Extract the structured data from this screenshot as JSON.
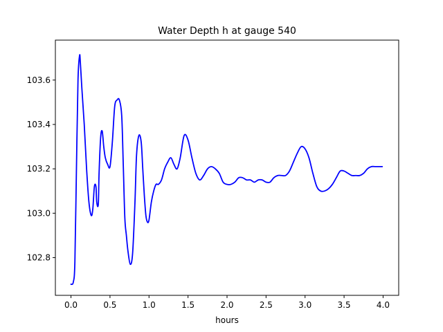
{
  "chart_data": {
    "type": "line",
    "title": "Water Depth h at gauge 540",
    "xlabel": "hours",
    "ylabel": "",
    "xlim": [
      -0.2,
      4.2
    ],
    "ylim": [
      102.63,
      103.78
    ],
    "xticks": [
      0.0,
      0.5,
      1.0,
      1.5,
      2.0,
      2.5,
      3.0,
      3.5,
      4.0
    ],
    "xtick_labels": [
      "0.0",
      "0.5",
      "1.0",
      "1.5",
      "2.0",
      "2.5",
      "3.0",
      "3.5",
      "4.0"
    ],
    "yticks": [
      102.8,
      103.0,
      103.2,
      103.4,
      103.6
    ],
    "ytick_labels": [
      "102.8",
      "103.0",
      "103.2",
      "103.4",
      "103.6"
    ],
    "grid": false,
    "series": [
      {
        "color": "#0000ff",
        "x": [
          0.0,
          0.03,
          0.05,
          0.07,
          0.09,
          0.11,
          0.12,
          0.14,
          0.17,
          0.2,
          0.23,
          0.26,
          0.28,
          0.3,
          0.32,
          0.33,
          0.35,
          0.36,
          0.38,
          0.4,
          0.42,
          0.44,
          0.47,
          0.5,
          0.53,
          0.56,
          0.59,
          0.62,
          0.65,
          0.67,
          0.69,
          0.71,
          0.73,
          0.76,
          0.79,
          0.82,
          0.84,
          0.87,
          0.9,
          0.92,
          0.94,
          0.96,
          0.98,
          1.0,
          1.03,
          1.06,
          1.09,
          1.12,
          1.16,
          1.2,
          1.24,
          1.28,
          1.32,
          1.36,
          1.4,
          1.45,
          1.5,
          1.55,
          1.6,
          1.65,
          1.7,
          1.75,
          1.8,
          1.85,
          1.9,
          1.95,
          2.0,
          2.05,
          2.1,
          2.15,
          2.2,
          2.25,
          2.3,
          2.35,
          2.4,
          2.45,
          2.5,
          2.55,
          2.6,
          2.65,
          2.7,
          2.75,
          2.8,
          2.85,
          2.9,
          2.95,
          3.0,
          3.05,
          3.1,
          3.15,
          3.2,
          3.25,
          3.3,
          3.35,
          3.4,
          3.45,
          3.5,
          3.55,
          3.6,
          3.65,
          3.7,
          3.75,
          3.8,
          3.85,
          3.9,
          3.95,
          3.99
        ],
        "y": [
          102.68,
          102.69,
          102.78,
          103.2,
          103.6,
          103.71,
          103.68,
          103.56,
          103.4,
          103.2,
          103.05,
          102.99,
          103.02,
          103.12,
          103.12,
          103.05,
          103.04,
          103.18,
          103.34,
          103.37,
          103.3,
          103.25,
          103.22,
          103.21,
          103.32,
          103.48,
          103.51,
          103.51,
          103.44,
          103.22,
          102.98,
          102.9,
          102.83,
          102.77,
          102.82,
          103.05,
          103.26,
          103.35,
          103.32,
          103.2,
          103.08,
          102.99,
          102.96,
          102.97,
          103.05,
          103.1,
          103.13,
          103.13,
          103.15,
          103.2,
          103.23,
          103.25,
          103.22,
          103.2,
          103.25,
          103.35,
          103.33,
          103.25,
          103.18,
          103.15,
          103.17,
          103.2,
          103.21,
          103.2,
          103.18,
          103.14,
          103.13,
          103.13,
          103.14,
          103.16,
          103.16,
          103.15,
          103.15,
          103.14,
          103.15,
          103.15,
          103.14,
          103.14,
          103.16,
          103.17,
          103.17,
          103.17,
          103.19,
          103.23,
          103.27,
          103.3,
          103.29,
          103.25,
          103.18,
          103.12,
          103.1,
          103.1,
          103.11,
          103.13,
          103.16,
          103.19,
          103.19,
          103.18,
          103.17,
          103.17,
          103.17,
          103.18,
          103.2,
          103.21,
          103.21,
          103.21,
          103.21
        ]
      }
    ]
  }
}
